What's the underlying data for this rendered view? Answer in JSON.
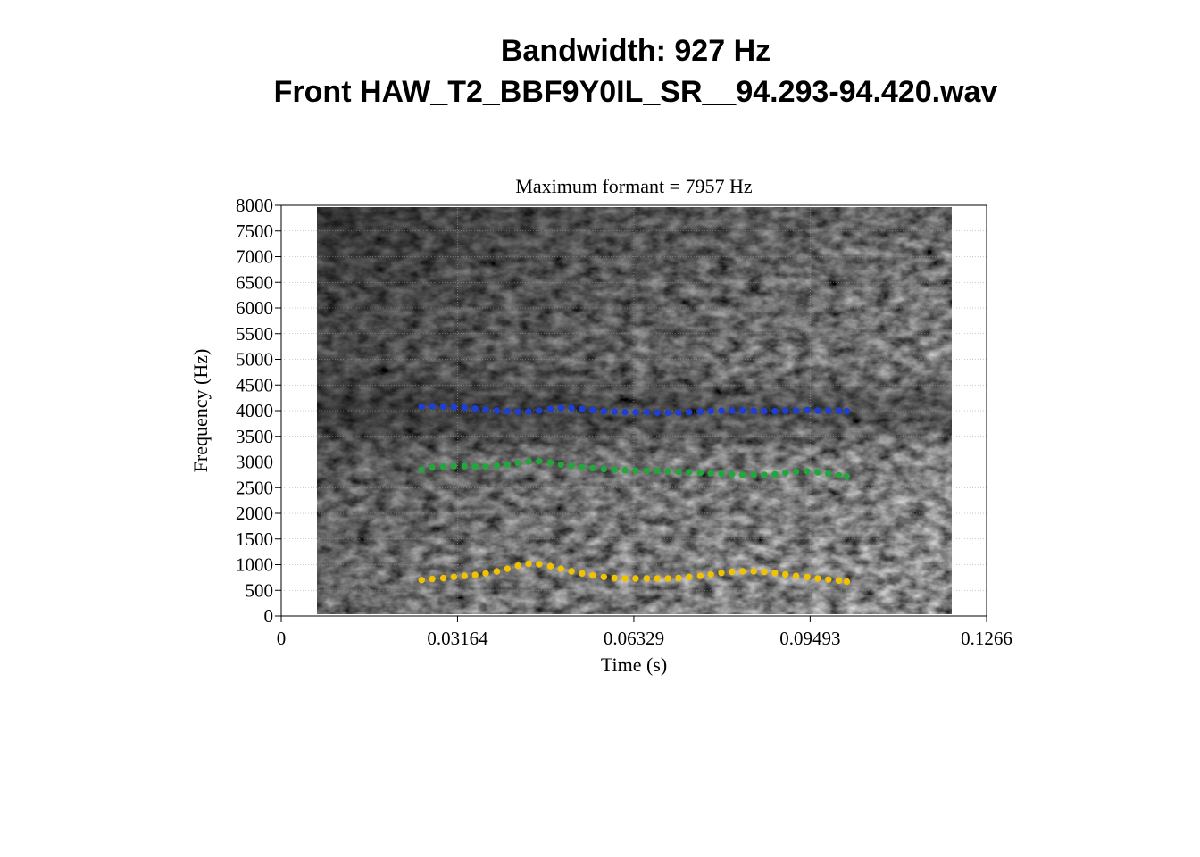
{
  "figure": {
    "title_line_1": "Bandwidth: 927 Hz",
    "title_line_2": "Front HAW_T2_BBF9Y0IL_SR__94.293-94.420.wav"
  },
  "chart_data": {
    "type": "scatter",
    "title": "Maximum formant = 7957 Hz",
    "xlabel": "Time (s)",
    "ylabel": "Frequency (Hz)",
    "xlim": [
      0,
      0.1266
    ],
    "ylim": [
      0,
      8000
    ],
    "x_ticks": [
      "0",
      "0.03164",
      "0.06329",
      "0.09493",
      "0.1266"
    ],
    "y_ticks": [
      "0",
      "500",
      "1000",
      "1500",
      "2000",
      "2500",
      "3000",
      "3500",
      "4000",
      "4500",
      "5000",
      "5500",
      "6000",
      "6500",
      "7000",
      "7500",
      "8000"
    ],
    "background": "grayscale spectrogram",
    "grid": true,
    "series": [
      {
        "color": "#1e3fd6",
        "x": [
          0.0252,
          0.0271,
          0.0291,
          0.031,
          0.0329,
          0.0348,
          0.0367,
          0.0387,
          0.0406,
          0.0425,
          0.0444,
          0.0463,
          0.0483,
          0.0502,
          0.0521,
          0.054,
          0.0559,
          0.0579,
          0.0598,
          0.0617,
          0.0636,
          0.0656,
          0.0675,
          0.0694,
          0.0713,
          0.0732,
          0.0752,
          0.0771,
          0.079,
          0.0809,
          0.0828,
          0.0848,
          0.0867,
          0.0886,
          0.0905,
          0.0924,
          0.0944,
          0.0963,
          0.0982,
          0.1001,
          0.1015
        ],
        "y": [
          4080,
          4090,
          4080,
          4070,
          4060,
          4040,
          4020,
          4000,
          3990,
          3980,
          3980,
          4000,
          4030,
          4050,
          4050,
          4030,
          4010,
          3990,
          3980,
          3970,
          3970,
          3970,
          3960,
          3960,
          3960,
          3970,
          3980,
          3990,
          4000,
          4000,
          4000,
          4000,
          3990,
          3990,
          4000,
          4000,
          4010,
          4000,
          4000,
          4000,
          3990
        ]
      },
      {
        "color": "#22a83a",
        "x": [
          0.0252,
          0.0271,
          0.0291,
          0.031,
          0.0329,
          0.0348,
          0.0367,
          0.0387,
          0.0406,
          0.0425,
          0.0444,
          0.0463,
          0.0483,
          0.0502,
          0.0521,
          0.054,
          0.0559,
          0.0579,
          0.0598,
          0.0617,
          0.0636,
          0.0656,
          0.0675,
          0.0694,
          0.0713,
          0.0732,
          0.0752,
          0.0771,
          0.079,
          0.0809,
          0.0828,
          0.0848,
          0.0867,
          0.0886,
          0.0905,
          0.0924,
          0.0944,
          0.0963,
          0.0982,
          0.1001,
          0.1015
        ],
        "y": [
          2850,
          2890,
          2910,
          2920,
          2920,
          2910,
          2910,
          2930,
          2950,
          2980,
          3010,
          3020,
          2990,
          2950,
          2920,
          2900,
          2880,
          2860,
          2850,
          2840,
          2830,
          2830,
          2830,
          2820,
          2810,
          2800,
          2790,
          2780,
          2770,
          2760,
          2750,
          2750,
          2750,
          2760,
          2790,
          2810,
          2820,
          2800,
          2770,
          2740,
          2720
        ]
      },
      {
        "color": "#f2c200",
        "x": [
          0.0252,
          0.0271,
          0.0291,
          0.031,
          0.0329,
          0.0348,
          0.0367,
          0.0387,
          0.0406,
          0.0425,
          0.0444,
          0.0463,
          0.0483,
          0.0502,
          0.0521,
          0.054,
          0.0559,
          0.0579,
          0.0598,
          0.0617,
          0.0636,
          0.0656,
          0.0675,
          0.0694,
          0.0713,
          0.0732,
          0.0752,
          0.0771,
          0.079,
          0.0809,
          0.0828,
          0.0848,
          0.0867,
          0.0886,
          0.0905,
          0.0924,
          0.0944,
          0.0963,
          0.0982,
          0.1001,
          0.1015
        ],
        "y": [
          700,
          720,
          740,
          760,
          780,
          800,
          830,
          870,
          920,
          980,
          1020,
          1010,
          970,
          920,
          870,
          830,
          790,
          760,
          740,
          730,
          730,
          730,
          730,
          730,
          740,
          760,
          780,
          810,
          840,
          860,
          870,
          870,
          860,
          840,
          810,
          780,
          760,
          730,
          710,
          690,
          670
        ]
      }
    ]
  },
  "spectrogram": {
    "colors": {
      "dark": "#1a1a1a",
      "light": "#f2f2f2"
    }
  }
}
